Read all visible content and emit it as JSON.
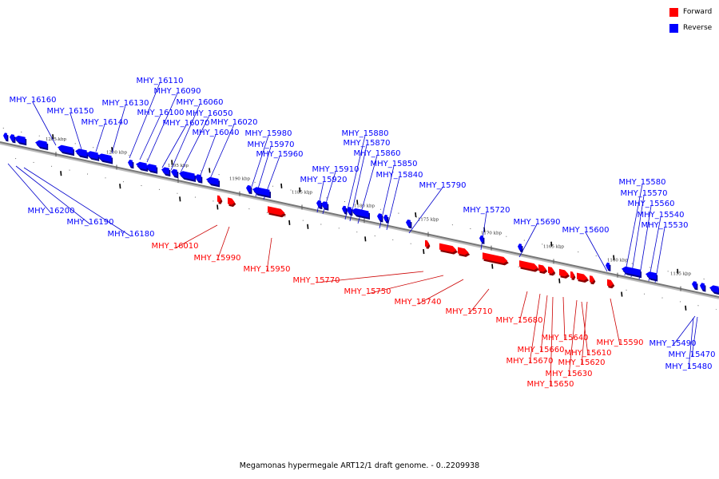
{
  "legend": [
    {
      "label": "Forward",
      "color": "#ff0000"
    },
    {
      "label": "Reverse",
      "color": "#0000ff"
    }
  ],
  "caption": "Megamonas hypermegale ART12/1 draft genome. - 0..2209938",
  "colors": {
    "forward": "#ff0000",
    "reverse": "#0000ff",
    "axis": "#777777",
    "leader_forward": "#cc0000",
    "leader_reverse": "#0000cc"
  },
  "scale_labels": [
    {
      "text": "1205 kbp",
      "kbp": 1205
    },
    {
      "text": "1200 kbp",
      "kbp": 1200
    },
    {
      "text": "1195 kbp",
      "kbp": 1195
    },
    {
      "text": "1190 kbp",
      "kbp": 1190
    },
    {
      "text": "1185 kbp",
      "kbp": 1185
    },
    {
      "text": "1180 kbp",
      "kbp": 1180
    },
    {
      "text": "1175 kbp",
      "kbp": 1175
    },
    {
      "text": "1170 kbp",
      "kbp": 1170
    },
    {
      "text": "1165 kbp",
      "kbp": 1165
    },
    {
      "text": "1160 kbp",
      "kbp": 1160
    },
    {
      "text": "1155 kbp",
      "kbp": 1155
    }
  ],
  "reverse_genes": [
    "MHY_16160",
    "MHY_16150",
    "MHY_16140",
    "MHY_16130",
    "MHY_16110",
    "MHY_16100",
    "MHY_16090",
    "MHY_16070",
    "MHY_16060",
    "MHY_16050",
    "MHY_16040",
    "MHY_16020",
    "MHY_15980",
    "MHY_15970",
    "MHY_15960",
    "MHY_15920",
    "MHY_15910",
    "MHY_15880",
    "MHY_15870",
    "MHY_15860",
    "MHY_15850",
    "MHY_15840",
    "MHY_15790",
    "MHY_15720",
    "MHY_15690",
    "MHY_15600",
    "MHY_15580",
    "MHY_15570",
    "MHY_15560",
    "MHY_15540",
    "MHY_15530",
    "MHY_16200",
    "MHY_16190",
    "MHY_16180",
    "MHY_15490",
    "MHY_15470",
    "MHY_15480"
  ],
  "forward_genes": [
    "MHY_16010",
    "MHY_15990",
    "MHY_15950",
    "MHY_15770",
    "MHY_15750",
    "MHY_15740",
    "MHY_15710",
    "MHY_15680",
    "MHY_15640",
    "MHY_15660",
    "MHY_15610",
    "MHY_15670",
    "MHY_15620",
    "MHY_15630",
    "MHY_15650",
    "MHY_15590"
  ]
}
